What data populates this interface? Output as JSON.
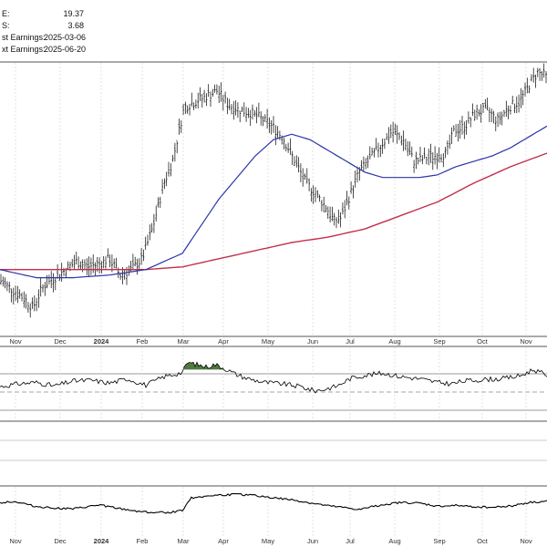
{
  "info": {
    "lines": [
      {
        "label": "E:",
        "value": "19.37"
      },
      {
        "label": "S:",
        "value": "3.68"
      },
      {
        "label": "st Earnings:",
        "value": "2025-03-06"
      },
      {
        "label": "xt Earnings:",
        "value": "2025-06-20"
      }
    ]
  },
  "colors": {
    "price": "#000000",
    "ma_short": "#2b35a8",
    "ma_long": "#c0304a",
    "rsi_fill": "#4f7a3f",
    "grid": "#d0d0d0",
    "panel_border": "#555555"
  },
  "chart_data": [
    {
      "type": "ohlc",
      "panel": "price",
      "x_ticks": [
        "Nov",
        "Dec",
        "2024",
        "Feb",
        "Mar",
        "Apr",
        "May",
        "Jun",
        "Jul",
        "Aug",
        "Sep",
        "Oct",
        "Nov"
      ],
      "y_range": [
        0,
        100
      ],
      "close_anchors": [
        [
          0,
          20
        ],
        [
          12,
          17
        ],
        [
          24,
          14
        ],
        [
          36,
          10
        ],
        [
          48,
          18
        ],
        [
          60,
          21
        ],
        [
          72,
          24
        ],
        [
          84,
          27
        ],
        [
          96,
          25
        ],
        [
          108,
          26
        ],
        [
          120,
          28
        ],
        [
          132,
          22
        ],
        [
          144,
          24
        ],
        [
          156,
          28
        ],
        [
          168,
          40
        ],
        [
          180,
          56
        ],
        [
          190,
          65
        ],
        [
          202,
          84
        ],
        [
          214,
          86
        ],
        [
          226,
          88
        ],
        [
          238,
          90
        ],
        [
          250,
          85
        ],
        [
          262,
          83
        ],
        [
          274,
          82
        ],
        [
          286,
          80
        ],
        [
          298,
          77
        ],
        [
          310,
          73
        ],
        [
          322,
          65
        ],
        [
          334,
          57
        ],
        [
          346,
          52
        ],
        [
          358,
          47
        ],
        [
          366,
          42
        ],
        [
          374,
          43
        ],
        [
          382,
          50
        ],
        [
          394,
          60
        ],
        [
          406,
          65
        ],
        [
          418,
          70
        ],
        [
          430,
          75
        ],
        [
          442,
          72
        ],
        [
          454,
          64
        ],
        [
          466,
          65
        ],
        [
          478,
          66
        ],
        [
          490,
          67
        ],
        [
          498,
          75
        ],
        [
          510,
          77
        ],
        [
          522,
          82
        ],
        [
          534,
          83
        ],
        [
          546,
          79
        ],
        [
          558,
          84
        ],
        [
          570,
          86
        ],
        [
          582,
          93
        ],
        [
          590,
          97
        ],
        [
          600,
          95
        ]
      ],
      "ma_short": [
        [
          0,
          24
        ],
        [
          40,
          21
        ],
        [
          80,
          21
        ],
        [
          120,
          22
        ],
        [
          160,
          24
        ],
        [
          200,
          30
        ],
        [
          240,
          50
        ],
        [
          280,
          66
        ],
        [
          300,
          72
        ],
        [
          320,
          74
        ],
        [
          340,
          72
        ],
        [
          360,
          68
        ],
        [
          380,
          64
        ],
        [
          400,
          60
        ],
        [
          420,
          58
        ],
        [
          440,
          58
        ],
        [
          460,
          58
        ],
        [
          480,
          59
        ],
        [
          500,
          62
        ],
        [
          520,
          64
        ],
        [
          540,
          66
        ],
        [
          560,
          69
        ],
        [
          580,
          73
        ],
        [
          600,
          77
        ]
      ],
      "ma_long": [
        [
          0,
          24
        ],
        [
          60,
          24
        ],
        [
          120,
          24
        ],
        [
          160,
          24
        ],
        [
          200,
          25
        ],
        [
          240,
          28
        ],
        [
          280,
          31
        ],
        [
          320,
          34
        ],
        [
          360,
          36
        ],
        [
          400,
          39
        ],
        [
          440,
          44
        ],
        [
          480,
          49
        ],
        [
          520,
          56
        ],
        [
          560,
          62
        ],
        [
          600,
          67
        ]
      ]
    },
    {
      "type": "line",
      "panel": "rsi",
      "y_range": [
        0,
        100
      ],
      "upper_band": 70,
      "midline": 50,
      "lower_band": 30,
      "anchors": [
        [
          0,
          46
        ],
        [
          20,
          50
        ],
        [
          40,
          52
        ],
        [
          60,
          47
        ],
        [
          80,
          54
        ],
        [
          100,
          55
        ],
        [
          120,
          51
        ],
        [
          140,
          57
        ],
        [
          160,
          48
        ],
        [
          180,
          60
        ],
        [
          200,
          66
        ],
        [
          206,
          80
        ],
        [
          216,
          77
        ],
        [
          226,
          74
        ],
        [
          236,
          77
        ],
        [
          246,
          72
        ],
        [
          256,
          65
        ],
        [
          270,
          58
        ],
        [
          290,
          52
        ],
        [
          310,
          50
        ],
        [
          330,
          46
        ],
        [
          345,
          40
        ],
        [
          355,
          42
        ],
        [
          370,
          47
        ],
        [
          385,
          58
        ],
        [
          400,
          62
        ],
        [
          420,
          65
        ],
        [
          440,
          60
        ],
        [
          460,
          57
        ],
        [
          480,
          52
        ],
        [
          495,
          50
        ],
        [
          510,
          54
        ],
        [
          530,
          56
        ],
        [
          550,
          57
        ],
        [
          570,
          61
        ],
        [
          585,
          70
        ],
        [
          600,
          62
        ]
      ]
    },
    {
      "type": "line",
      "panel": "lower",
      "y_range": [
        0,
        100
      ],
      "anchors": [
        [
          0,
          55
        ],
        [
          10,
          59
        ],
        [
          20,
          57
        ],
        [
          40,
          44
        ],
        [
          60,
          40
        ],
        [
          80,
          37
        ],
        [
          100,
          45
        ],
        [
          110,
          49
        ],
        [
          130,
          38
        ],
        [
          150,
          31
        ],
        [
          170,
          26
        ],
        [
          190,
          28
        ],
        [
          200,
          34
        ],
        [
          210,
          70
        ],
        [
          220,
          74
        ],
        [
          240,
          78
        ],
        [
          260,
          80
        ],
        [
          280,
          77
        ],
        [
          300,
          70
        ],
        [
          320,
          64
        ],
        [
          340,
          55
        ],
        [
          360,
          46
        ],
        [
          380,
          40
        ],
        [
          395,
          35
        ],
        [
          410,
          45
        ],
        [
          425,
          52
        ],
        [
          440,
          56
        ],
        [
          460,
          54
        ],
        [
          480,
          45
        ],
        [
          500,
          47
        ],
        [
          520,
          44
        ],
        [
          540,
          42
        ],
        [
          560,
          46
        ],
        [
          580,
          56
        ],
        [
          600,
          60
        ]
      ]
    }
  ]
}
